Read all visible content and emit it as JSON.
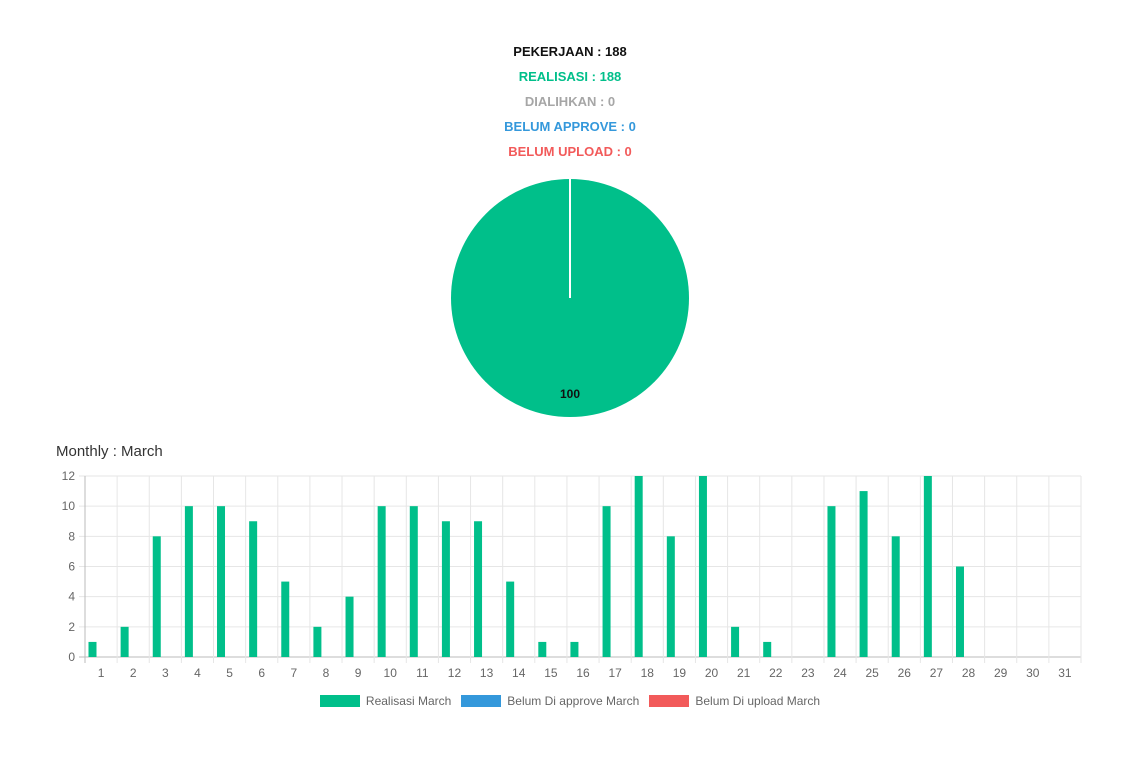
{
  "summary": {
    "pekerjaan": "PEKERJAAN : 188",
    "realisasi": "REALISASI : 188",
    "dialihkan": "DIALIHKAN : 0",
    "belum_approve": "BELUM APPROVE : 0",
    "belum_upload": "BELUM UPLOAD : 0"
  },
  "colors": {
    "realisasi": "#00bf8a",
    "dialihkan": "#a6a6a6",
    "belum_approve": "#3498db",
    "belum_upload": "#f25a5a"
  },
  "chart_data": [
    {
      "type": "pie",
      "slices": [
        {
          "value": 100,
          "color": "#00bf8a"
        },
        {
          "value": 0,
          "color": "#3498db"
        },
        {
          "value": 0,
          "color": "#f25a5a"
        }
      ],
      "data_label": "100"
    },
    {
      "type": "bar",
      "title": "Monthly : March",
      "categories": [
        "1",
        "2",
        "3",
        "4",
        "5",
        "6",
        "7",
        "8",
        "9",
        "10",
        "11",
        "12",
        "13",
        "14",
        "15",
        "16",
        "17",
        "18",
        "19",
        "20",
        "21",
        "22",
        "23",
        "24",
        "25",
        "26",
        "27",
        "28",
        "29",
        "30",
        "31"
      ],
      "series": [
        {
          "name": "Realisasi March",
          "color": "#00bf8a",
          "values": [
            1,
            2,
            8,
            10,
            10,
            9,
            5,
            2,
            4,
            10,
            10,
            9,
            9,
            5,
            1,
            1,
            10,
            12,
            8,
            12,
            2,
            1,
            0,
            10,
            11,
            8,
            12,
            6,
            0,
            0,
            0
          ]
        },
        {
          "name": "Belum Di approve March",
          "color": "#3498db",
          "values": [
            0,
            0,
            0,
            0,
            0,
            0,
            0,
            0,
            0,
            0,
            0,
            0,
            0,
            0,
            0,
            0,
            0,
            0,
            0,
            0,
            0,
            0,
            0,
            0,
            0,
            0,
            0,
            0,
            0,
            0,
            0
          ]
        },
        {
          "name": "Belum Di upload March",
          "color": "#f25a5a",
          "values": [
            0,
            0,
            0,
            0,
            0,
            0,
            0,
            0,
            0,
            0,
            0,
            0,
            0,
            0,
            0,
            0,
            0,
            0,
            0,
            0,
            0,
            0,
            0,
            0,
            0,
            0,
            0,
            0,
            0,
            0,
            0
          ]
        }
      ],
      "ylim": [
        0,
        12
      ],
      "yticks": [
        0,
        2,
        4,
        6,
        8,
        10,
        12
      ],
      "grid": true,
      "legend_position": "bottom"
    }
  ]
}
